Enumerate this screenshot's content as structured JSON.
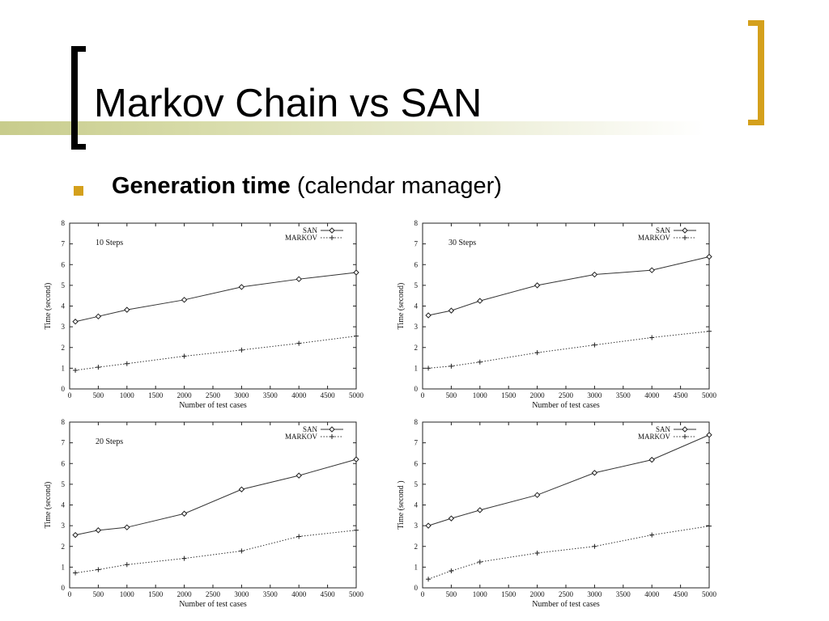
{
  "slide": {
    "title": "Markov Chain vs SAN",
    "bullet_bold": "Generation time",
    "bullet_rest": " (calendar manager)",
    "accent_color": "#d4a01c"
  },
  "chart_data": [
    {
      "type": "line",
      "annotation": "10 Steps",
      "xlabel": "Number of test cases",
      "ylabel": "Time (second)",
      "xlim": [
        0,
        5000
      ],
      "ylim": [
        0,
        8
      ],
      "xticks": [
        0,
        500,
        1000,
        1500,
        2000,
        2500,
        3000,
        3500,
        4000,
        4500,
        5000
      ],
      "yticks": [
        0,
        1,
        2,
        3,
        4,
        5,
        6,
        7,
        8
      ],
      "legend": "top-right",
      "x": [
        100,
        500,
        1000,
        2000,
        3000,
        4000,
        5000
      ],
      "series": [
        {
          "name": "SAN",
          "marker": "diamond",
          "style": "solid",
          "values": [
            3.25,
            3.5,
            3.82,
            4.3,
            4.92,
            5.3,
            5.62
          ]
        },
        {
          "name": "MARKOV",
          "marker": "plus",
          "style": "dotted",
          "values": [
            0.9,
            1.05,
            1.22,
            1.58,
            1.88,
            2.2,
            2.55
          ]
        }
      ]
    },
    {
      "type": "line",
      "annotation": "30 Steps",
      "xlabel": "Number of test cases",
      "ylabel": "Time (second)",
      "xlim": [
        0,
        5000
      ],
      "ylim": [
        0,
        8
      ],
      "xticks": [
        0,
        500,
        1000,
        1500,
        2000,
        2500,
        3000,
        3500,
        4000,
        4500,
        5000
      ],
      "yticks": [
        0,
        1,
        2,
        3,
        4,
        5,
        6,
        7,
        8
      ],
      "legend": "top-right",
      "x": [
        100,
        500,
        1000,
        2000,
        3000,
        4000,
        5000
      ],
      "series": [
        {
          "name": "SAN",
          "marker": "diamond",
          "style": "solid",
          "values": [
            3.55,
            3.78,
            4.25,
            5.0,
            5.52,
            5.73,
            6.38
          ]
        },
        {
          "name": "MARKOV",
          "marker": "plus",
          "style": "dotted",
          "values": [
            1.0,
            1.1,
            1.3,
            1.75,
            2.12,
            2.48,
            2.78
          ]
        }
      ]
    },
    {
      "type": "line",
      "annotation": "20 Steps",
      "xlabel": "Number of test cases",
      "ylabel": "Time (second)",
      "xlim": [
        0,
        5000
      ],
      "ylim": [
        0,
        8
      ],
      "xticks": [
        0,
        500,
        1000,
        1500,
        2000,
        2500,
        3000,
        3500,
        4000,
        4500,
        5000
      ],
      "yticks": [
        0,
        1,
        2,
        3,
        4,
        5,
        6,
        7,
        8
      ],
      "legend": "top-right",
      "x": [
        100,
        500,
        1000,
        2000,
        3000,
        4000,
        5000
      ],
      "series": [
        {
          "name": "SAN",
          "marker": "diamond",
          "style": "solid",
          "values": [
            2.55,
            2.78,
            2.92,
            3.58,
            4.75,
            5.42,
            6.2
          ]
        },
        {
          "name": "MARKOV",
          "marker": "plus",
          "style": "dotted",
          "values": [
            0.72,
            0.88,
            1.12,
            1.42,
            1.78,
            2.48,
            2.78
          ]
        }
      ]
    },
    {
      "type": "line",
      "annotation": "",
      "xlabel": "Number of test cases",
      "ylabel": "Time (second )",
      "xlim": [
        0,
        5000
      ],
      "ylim": [
        0,
        8
      ],
      "xticks": [
        0,
        500,
        1000,
        1500,
        2000,
        2500,
        3000,
        3500,
        4000,
        4500,
        5000
      ],
      "yticks": [
        0,
        1,
        2,
        3,
        4,
        5,
        6,
        7,
        8
      ],
      "legend": "top-right",
      "x": [
        100,
        500,
        1000,
        2000,
        3000,
        4000,
        5000
      ],
      "series": [
        {
          "name": "SAN",
          "marker": "diamond",
          "style": "solid",
          "values": [
            3.0,
            3.35,
            3.75,
            4.48,
            5.55,
            6.18,
            7.38
          ]
        },
        {
          "name": "MARKOV",
          "marker": "plus",
          "style": "dotted",
          "values": [
            0.42,
            0.82,
            1.25,
            1.68,
            2.0,
            2.55,
            2.98
          ]
        }
      ]
    }
  ]
}
